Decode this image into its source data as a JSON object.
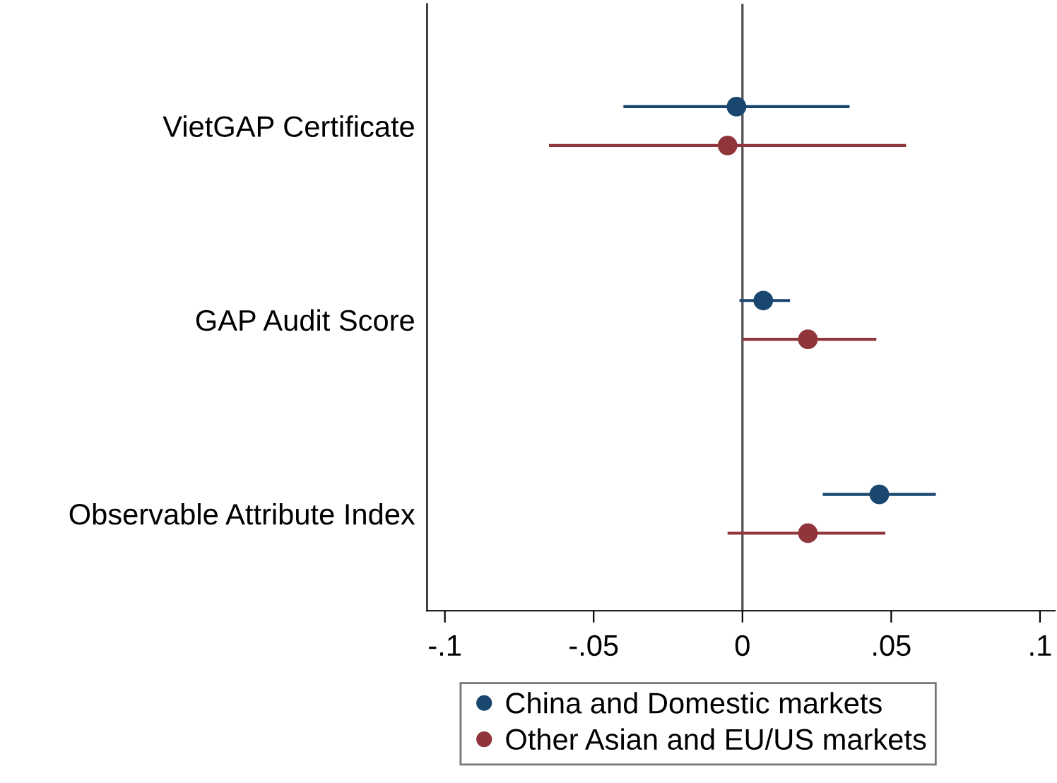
{
  "chart_data": {
    "type": "scatter",
    "orientation": "horizontal",
    "categories": [
      "VietGAP Certificate",
      "GAP Audit Score",
      "Observable Attribute Index"
    ],
    "series": [
      {
        "name": "China and Domestic markets",
        "color": "#1a476f",
        "values": [
          -0.002,
          0.007,
          0.046
        ],
        "errors": [
          [
            -0.04,
            0.036
          ],
          [
            -0.001,
            0.016
          ],
          [
            0.027,
            0.065
          ]
        ]
      },
      {
        "name": "Other Asian and EU/US markets",
        "color": "#90353b",
        "values": [
          -0.005,
          0.022,
          0.022
        ],
        "errors": [
          [
            -0.065,
            0.055
          ],
          [
            0.0,
            0.045
          ],
          [
            -0.005,
            0.048
          ]
        ]
      }
    ],
    "xlim": [
      -0.106,
      0.105
    ],
    "xticks": [
      {
        "value": -0.1,
        "label": "-.1"
      },
      {
        "value": -0.05,
        "label": "-.05"
      },
      {
        "value": 0,
        "label": "0"
      },
      {
        "value": 0.05,
        "label": ".05"
      },
      {
        "value": 0.1,
        "label": ".1"
      }
    ],
    "ref_lines": [
      {
        "axis": "x",
        "value": 0,
        "color": "#555555"
      }
    ],
    "marker": "circle",
    "legend": "bottom",
    "grid": false
  }
}
